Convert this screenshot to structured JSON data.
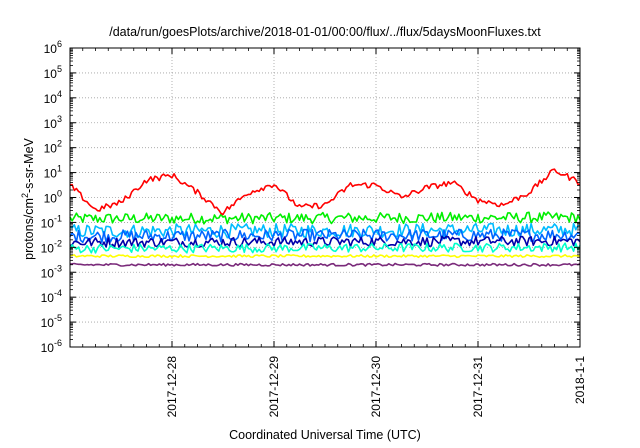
{
  "chart_data": {
    "type": "line",
    "title": "/data/run/goesPlots/archive/2018-01-01/00:00/flux/../flux/5daysMoonFluxes.txt",
    "xlabel": "Coordinated Universal Time (UTC)",
    "ylabel": {
      "prefix": "protons/cm",
      "sup": "2",
      "suffix": "-s-sr-MeV"
    },
    "yscale": "log",
    "ylim_exp": [
      -6,
      6
    ],
    "ytick_exps": [
      -6,
      -5,
      -4,
      -3,
      -2,
      -1,
      0,
      1,
      2,
      3,
      4,
      5,
      6
    ],
    "ytick_base": "10",
    "xlim_days": [
      "2017-12-27T00:00",
      "2018-01-01T00:00"
    ],
    "xticks": [
      {
        "label": "2017-12-28",
        "at": "2017-12-28T00:00"
      },
      {
        "label": "2017-12-29",
        "at": "2017-12-29T00:00"
      },
      {
        "label": "2017-12-30",
        "at": "2017-12-30T00:00"
      },
      {
        "label": "2017-12-31",
        "at": "2017-12-31T00:00"
      },
      {
        "label": "2018-1-1",
        "at": "2018-01-01T00:00"
      }
    ],
    "grid": true,
    "legend": "none",
    "series": [
      {
        "color": "#ff0000",
        "time": [
          "2017-12-27T00:00",
          "2017-12-27T06:00",
          "2017-12-27T12:00",
          "2017-12-27T18:00",
          "2017-12-28T00:00",
          "2017-12-28T06:00",
          "2017-12-28T12:00",
          "2017-12-28T18:00",
          "2017-12-29T00:00",
          "2017-12-29T06:00",
          "2017-12-29T12:00",
          "2017-12-29T18:00",
          "2017-12-30T00:00",
          "2017-12-30T06:00",
          "2017-12-30T12:00",
          "2017-12-30T18:00",
          "2017-12-31T00:00",
          "2017-12-31T06:00",
          "2017-12-31T12:00",
          "2017-12-31T18:00",
          "2018-01-01T00:00"
        ],
        "log10_value": [
          0.5,
          -0.5,
          -0.2,
          0.7,
          0.9,
          0.2,
          -0.6,
          0.2,
          0.55,
          -0.4,
          -0.3,
          0.5,
          0.5,
          0.0,
          0.4,
          0.6,
          -0.1,
          -0.3,
          0.2,
          1.1,
          0.6
        ],
        "noise": 0.12
      },
      {
        "color": "#00ee00",
        "time": [
          "2017-12-27T00:00",
          "2018-01-01T00:00"
        ],
        "log10_value": [
          -0.85,
          -0.8
        ],
        "noise": 0.22
      },
      {
        "color": "#00bbff",
        "time": [
          "2017-12-27T00:00",
          "2018-01-01T00:00"
        ],
        "log10_value": [
          -1.35,
          -1.3
        ],
        "noise": 0.28
      },
      {
        "color": "#0066ff",
        "time": [
          "2017-12-27T00:00",
          "2018-01-01T00:00"
        ],
        "log10_value": [
          -1.55,
          -1.5
        ],
        "noise": 0.25
      },
      {
        "color": "#0000aa",
        "time": [
          "2017-12-27T00:00",
          "2018-01-01T00:00"
        ],
        "log10_value": [
          -1.8,
          -1.75
        ],
        "noise": 0.2
      },
      {
        "color": "#00ffcc",
        "time": [
          "2017-12-27T00:00",
          "2018-01-01T00:00"
        ],
        "log10_value": [
          -2.05,
          -2.0
        ],
        "noise": 0.18
      },
      {
        "color": "#ffff00",
        "time": [
          "2017-12-27T00:00",
          "2018-01-01T00:00"
        ],
        "log10_value": [
          -2.35,
          -2.35
        ],
        "noise": 0.05
      },
      {
        "color": "#7a2a7a",
        "time": [
          "2017-12-27T00:00",
          "2018-01-01T00:00"
        ],
        "log10_value": [
          -2.7,
          -2.7
        ],
        "noise": 0.05
      }
    ]
  }
}
